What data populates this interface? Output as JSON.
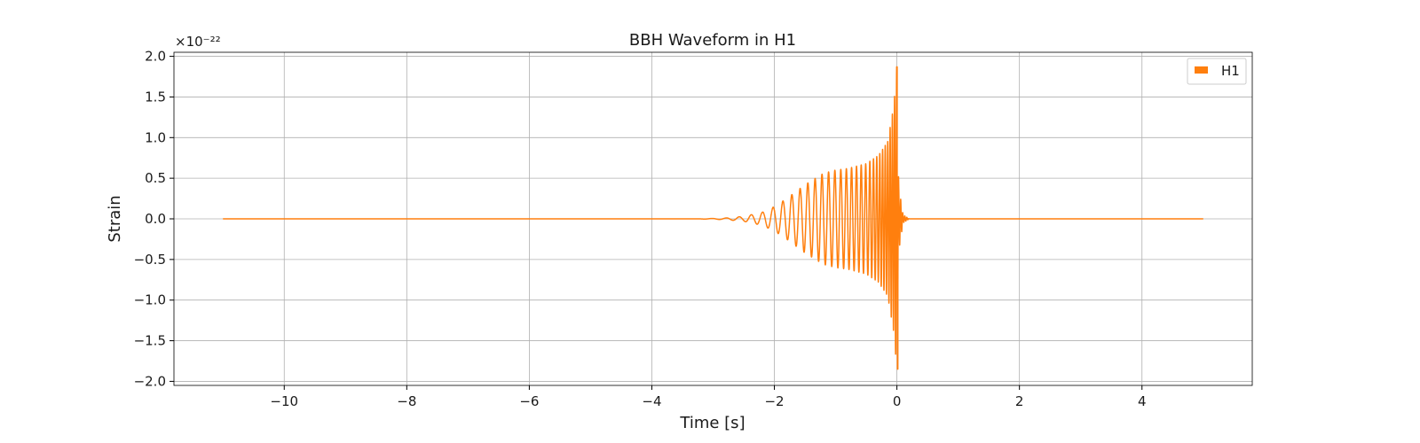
{
  "chart_data": {
    "type": "line",
    "title": "BBH Waveform in H1",
    "xlabel": "Time [s]",
    "ylabel": "Strain",
    "y_offset_text": "×10⁻²²",
    "y_scale_factor": 1e-22,
    "xlim": [
      -11.8,
      5.8
    ],
    "ylim": [
      -2.05,
      2.05
    ],
    "x_ticks": [
      -10,
      -8,
      -6,
      -4,
      -2,
      0,
      2,
      4
    ],
    "x_tick_labels": [
      "−10",
      "−8",
      "−6",
      "−4",
      "−2",
      "0",
      "2",
      "4"
    ],
    "y_ticks": [
      -2.0,
      -1.5,
      -1.0,
      -0.5,
      0.0,
      0.5,
      1.0,
      1.5,
      2.0
    ],
    "y_tick_labels": [
      "−2.0",
      "−1.5",
      "−1.0",
      "−0.5",
      "0.0",
      "0.5",
      "1.0",
      "1.5",
      "2.0"
    ],
    "grid": true,
    "legend": {
      "position": "top-right",
      "entries": [
        "H1"
      ]
    },
    "series": [
      {
        "name": "H1",
        "color": "#ff7f0e",
        "x_range": [
          -11.0,
          5.0
        ],
        "envelope": {
          "x": [
            -3.3,
            -3.0,
            -2.8,
            -2.5,
            -2.2,
            -2.0,
            -1.8,
            -1.5,
            -1.2,
            -1.0,
            -0.8,
            -0.5,
            -0.3,
            -0.15,
            -0.05,
            0.0,
            0.03,
            0.1,
            0.2
          ],
          "amplitude": [
            0.0,
            0.005,
            0.01,
            0.03,
            0.08,
            0.15,
            0.25,
            0.42,
            0.56,
            0.6,
            0.62,
            0.68,
            0.78,
            0.95,
            1.4,
            1.87,
            0.4,
            0.05,
            0.0
          ]
        },
        "frequency_hz": {
          "x": [
            -3.3,
            -2.0,
            -1.0,
            -0.5,
            0.0
          ],
          "f": [
            3.5,
            6.0,
            10.0,
            14.0,
            30.0
          ]
        },
        "peak": {
          "x": 0.0,
          "max": 1.87,
          "min": -1.85
        }
      }
    ]
  }
}
